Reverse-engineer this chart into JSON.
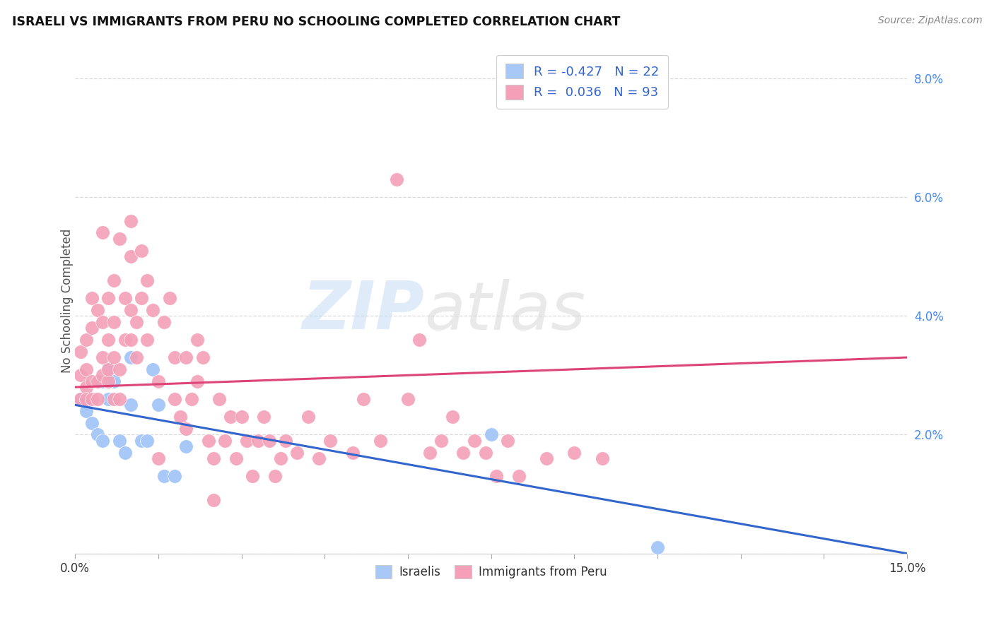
{
  "title": "ISRAELI VS IMMIGRANTS FROM PERU NO SCHOOLING COMPLETED CORRELATION CHART",
  "source": "Source: ZipAtlas.com",
  "ylabel": "No Schooling Completed",
  "xlim": [
    0.0,
    0.15
  ],
  "ylim": [
    0.0,
    0.085
  ],
  "x_ticks": [
    0.0,
    0.015,
    0.03,
    0.045,
    0.06,
    0.075,
    0.09,
    0.105,
    0.12,
    0.135,
    0.15
  ],
  "x_tick_labels_show": [
    "0.0%",
    "",
    "",
    "",
    "",
    "",
    "",
    "",
    "",
    "",
    "15.0%"
  ],
  "y_ticks": [
    0.0,
    0.02,
    0.04,
    0.06,
    0.08
  ],
  "y_tick_labels": [
    "",
    "2.0%",
    "4.0%",
    "6.0%",
    "8.0%"
  ],
  "israeli_color": "#a8c8f8",
  "peru_color": "#f4a0b8",
  "israeli_line_color": "#3366cc",
  "peru_line_color": "#dd4477",
  "watermark_zip": "ZIP",
  "watermark_atlas": "atlas",
  "background_color": "#ffffff",
  "grid_color": "#d8d8d8",
  "israeli_x": [
    0.001,
    0.002,
    0.003,
    0.004,
    0.005,
    0.005,
    0.006,
    0.006,
    0.007,
    0.008,
    0.009,
    0.01,
    0.01,
    0.012,
    0.013,
    0.014,
    0.015,
    0.016,
    0.018,
    0.02,
    0.075,
    0.105
  ],
  "israeli_y": [
    0.026,
    0.024,
    0.022,
    0.02,
    0.019,
    0.029,
    0.026,
    0.031,
    0.029,
    0.019,
    0.017,
    0.033,
    0.025,
    0.019,
    0.019,
    0.031,
    0.025,
    0.013,
    0.013,
    0.018,
    0.02,
    0.001
  ],
  "peru_x": [
    0.001,
    0.001,
    0.001,
    0.002,
    0.002,
    0.002,
    0.002,
    0.003,
    0.003,
    0.003,
    0.003,
    0.004,
    0.004,
    0.004,
    0.005,
    0.005,
    0.005,
    0.005,
    0.006,
    0.006,
    0.006,
    0.006,
    0.007,
    0.007,
    0.007,
    0.007,
    0.008,
    0.008,
    0.008,
    0.009,
    0.009,
    0.01,
    0.01,
    0.01,
    0.01,
    0.011,
    0.011,
    0.012,
    0.012,
    0.013,
    0.013,
    0.014,
    0.015,
    0.015,
    0.016,
    0.017,
    0.018,
    0.018,
    0.019,
    0.02,
    0.02,
    0.021,
    0.022,
    0.022,
    0.023,
    0.024,
    0.025,
    0.025,
    0.026,
    0.027,
    0.028,
    0.029,
    0.03,
    0.031,
    0.032,
    0.033,
    0.034,
    0.035,
    0.036,
    0.037,
    0.038,
    0.04,
    0.042,
    0.044,
    0.046,
    0.05,
    0.052,
    0.055,
    0.058,
    0.06,
    0.062,
    0.064,
    0.066,
    0.068,
    0.07,
    0.072,
    0.074,
    0.076,
    0.078,
    0.08,
    0.085,
    0.09,
    0.095
  ],
  "peru_y": [
    0.026,
    0.03,
    0.034,
    0.028,
    0.026,
    0.031,
    0.036,
    0.029,
    0.026,
    0.038,
    0.043,
    0.029,
    0.026,
    0.041,
    0.03,
    0.033,
    0.054,
    0.039,
    0.029,
    0.036,
    0.043,
    0.031,
    0.026,
    0.033,
    0.046,
    0.039,
    0.026,
    0.031,
    0.053,
    0.036,
    0.043,
    0.041,
    0.036,
    0.05,
    0.056,
    0.039,
    0.033,
    0.043,
    0.051,
    0.036,
    0.046,
    0.041,
    0.029,
    0.016,
    0.039,
    0.043,
    0.026,
    0.033,
    0.023,
    0.033,
    0.021,
    0.026,
    0.029,
    0.036,
    0.033,
    0.019,
    0.009,
    0.016,
    0.026,
    0.019,
    0.023,
    0.016,
    0.023,
    0.019,
    0.013,
    0.019,
    0.023,
    0.019,
    0.013,
    0.016,
    0.019,
    0.017,
    0.023,
    0.016,
    0.019,
    0.017,
    0.026,
    0.019,
    0.063,
    0.026,
    0.036,
    0.017,
    0.019,
    0.023,
    0.017,
    0.019,
    0.017,
    0.013,
    0.019,
    0.013,
    0.016,
    0.017,
    0.016
  ],
  "isr_line_x0": 0.0,
  "isr_line_y0": 0.025,
  "isr_line_x1": 0.15,
  "isr_line_y1": 0.0,
  "peru_line_x0": 0.0,
  "peru_line_y0": 0.028,
  "peru_line_x1": 0.15,
  "peru_line_y1": 0.033,
  "legend_label_isr": "R = -0.427   N = 22",
  "legend_label_peru": "R =  0.036   N = 93",
  "bottom_legend_isr": "Israelis",
  "bottom_legend_peru": "Immigrants from Peru"
}
